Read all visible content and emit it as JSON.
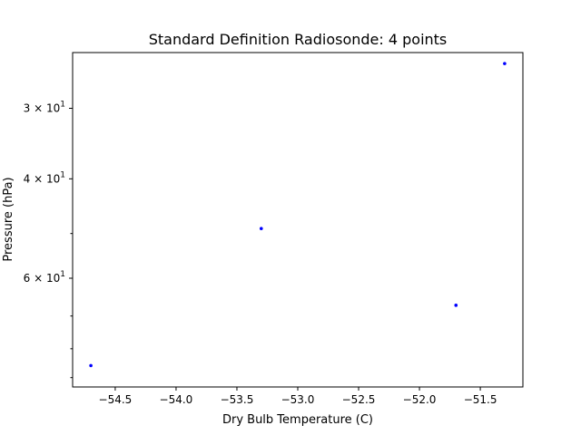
{
  "chart_data": {
    "type": "scatter",
    "title": "Standard Definition Radiosonde: 4 points",
    "xlabel": "Dry Bulb Temperature (C)",
    "ylabel": "Pressure (hPa)",
    "xlim": [
      -54.85,
      -51.15
    ],
    "ylim": [
      23.9,
      93.5
    ],
    "yscale": "log",
    "yinverted": true,
    "grid": false,
    "marker_color": "#0000ff",
    "x_ticks": [
      {
        "value": -54.5,
        "label": "−54.5"
      },
      {
        "value": -54.0,
        "label": "−54.0"
      },
      {
        "value": -53.5,
        "label": "−53.5"
      },
      {
        "value": -53.0,
        "label": "−53.0"
      },
      {
        "value": -52.5,
        "label": "−52.5"
      },
      {
        "value": -52.0,
        "label": "−52.0"
      },
      {
        "value": -51.5,
        "label": "−51.5"
      }
    ],
    "y_major_ticks": [
      {
        "value": 30,
        "base": "3 × 10",
        "exp": "1"
      },
      {
        "value": 40,
        "base": "4 × 10",
        "exp": "1"
      },
      {
        "value": 60,
        "base": "6 × 10",
        "exp": "1"
      }
    ],
    "y_minor_ticks": [
      50,
      70,
      80,
      90
    ],
    "points": [
      {
        "x": -54.7,
        "y": 85.7
      },
      {
        "x": -53.3,
        "y": 49.0
      },
      {
        "x": -51.7,
        "y": 67.0
      },
      {
        "x": -51.3,
        "y": 25.0
      }
    ]
  }
}
